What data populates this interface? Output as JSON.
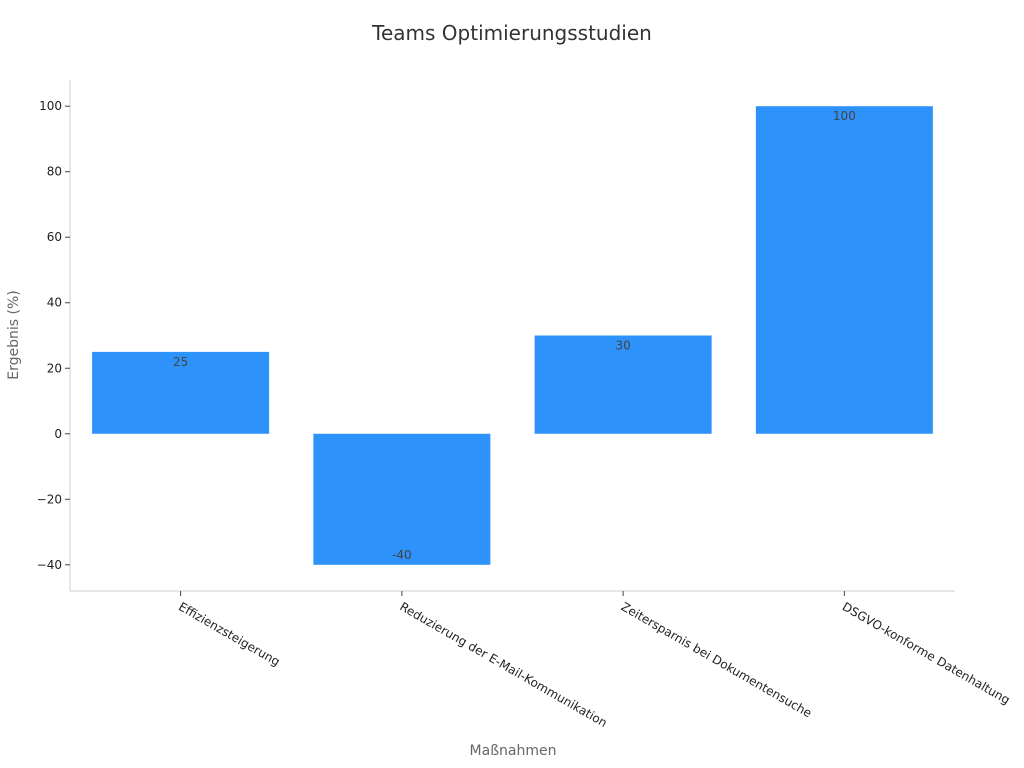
{
  "chart_data": {
    "type": "bar",
    "title": "Teams Optimierungsstudien",
    "xlabel": "Maßnahmen",
    "ylabel": "Ergebnis (%)",
    "categories": [
      "Effizienzsteigerung",
      "Reduzierung der E-Mail-Kommunikation",
      "Zeitersparnis bei Dokumentensuche",
      "DSGVO-konforme Datenhaltung"
    ],
    "values": [
      25,
      -40,
      30,
      100
    ],
    "value_labels": [
      "25",
      "-40",
      "30",
      "100"
    ],
    "ylim": [
      -48,
      108
    ],
    "yticks": [
      -40,
      -20,
      0,
      20,
      40,
      60,
      80,
      100
    ],
    "ytick_labels": [
      "−40",
      "−20",
      "0",
      "20",
      "40",
      "60",
      "80",
      "100"
    ],
    "grid": false,
    "colors": {
      "bar": "#2d92f9",
      "axis": "#cccccc"
    }
  }
}
